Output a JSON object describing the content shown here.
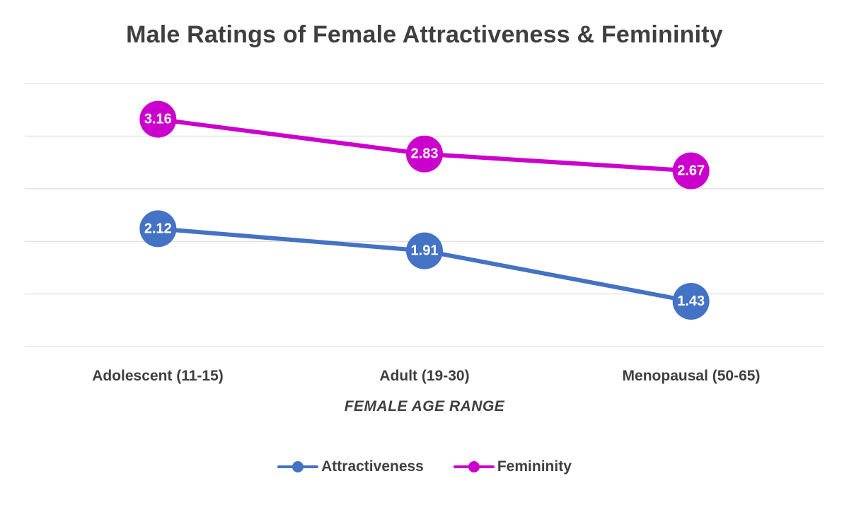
{
  "title": "Male Ratings of Female Attractiveness & Femininity",
  "xlabel": "FEMALE AGE RANGE",
  "chart_data": {
    "type": "line",
    "categories": [
      "Adolescent (11-15)",
      "Adult (19-30)",
      "Menopausal (50-65)"
    ],
    "series": [
      {
        "name": "Attractiveness",
        "color": "#4472C4",
        "values": [
          2.12,
          1.91,
          1.43
        ]
      },
      {
        "name": "Femininity",
        "color": "#CC00CC",
        "values": [
          3.16,
          2.83,
          2.67
        ]
      }
    ],
    "ylim": [
      1.0,
      3.5
    ],
    "gridlines": [
      1.0,
      1.5,
      2.0,
      2.5,
      3.0,
      3.5
    ],
    "grid": true,
    "legend_position": "bottom",
    "data_labels": true,
    "data_label_format": "2dp"
  },
  "colors": {
    "title_text": "#3f3f3f",
    "axis_text": "#404040",
    "grid_line": "#d9d9d9",
    "data_label_text": "#ffffff"
  }
}
